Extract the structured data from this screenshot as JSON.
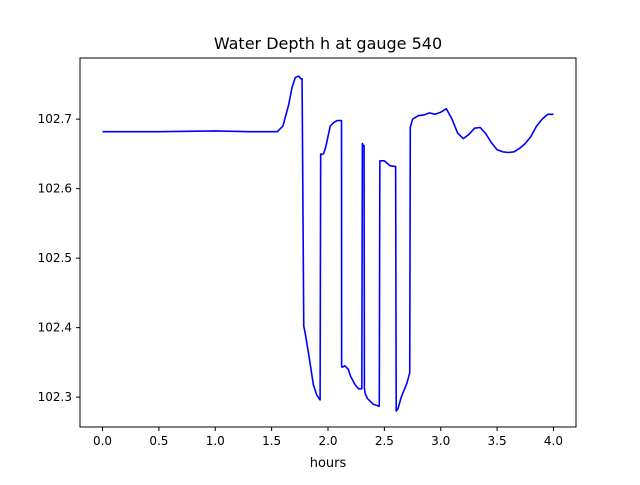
{
  "colors": {
    "line": "#0000ff",
    "axes": "#000000",
    "background": "#ffffff"
  },
  "chart_data": {
    "type": "line",
    "title": "Water Depth h at gauge 540",
    "xlabel": "hours",
    "ylabel": "",
    "xlim": [
      -0.2,
      4.2
    ],
    "ylim": [
      102.257,
      102.788
    ],
    "grid": false,
    "legend": "none",
    "xticks": [
      0.0,
      0.5,
      1.0,
      1.5,
      2.0,
      2.5,
      3.0,
      3.5,
      4.0
    ],
    "xtick_labels": [
      "0.0",
      "0.5",
      "1.0",
      "1.5",
      "2.0",
      "2.5",
      "3.0",
      "3.5",
      "4.0"
    ],
    "yticks": [
      102.3,
      102.4,
      102.5,
      102.6,
      102.7
    ],
    "ytick_labels": [
      "102.3",
      "102.4",
      "102.5",
      "102.6",
      "102.7"
    ],
    "series": [
      {
        "color": "#0000ff",
        "x": [
          0.0,
          0.5,
          1.0,
          1.3,
          1.55,
          1.6,
          1.65,
          1.68,
          1.71,
          1.74,
          1.76,
          1.77,
          1.785,
          1.8,
          1.83,
          1.87,
          1.9,
          1.93,
          1.935,
          1.94,
          1.96,
          1.98,
          2.0,
          2.02,
          2.05,
          2.08,
          2.1,
          2.12,
          2.121,
          2.125,
          2.15,
          2.18,
          2.2,
          2.24,
          2.27,
          2.3,
          2.305,
          2.308,
          2.31,
          2.32,
          2.323,
          2.325,
          2.33,
          2.35,
          2.4,
          2.45,
          2.455,
          2.46,
          2.5,
          2.55,
          2.59,
          2.6,
          2.605,
          2.62,
          2.65,
          2.7,
          2.725,
          2.73,
          2.75,
          2.8,
          2.85,
          2.9,
          2.95,
          3.0,
          3.05,
          3.1,
          3.15,
          3.2,
          3.25,
          3.3,
          3.35,
          3.4,
          3.45,
          3.5,
          3.55,
          3.6,
          3.65,
          3.7,
          3.75,
          3.8,
          3.85,
          3.9,
          3.95,
          4.0
        ],
        "values": [
          102.682,
          102.682,
          102.683,
          102.682,
          102.682,
          102.69,
          102.72,
          102.745,
          102.76,
          102.762,
          102.758,
          102.758,
          102.402,
          102.39,
          102.36,
          102.318,
          102.303,
          102.296,
          102.65,
          102.649,
          102.65,
          102.66,
          102.675,
          102.69,
          102.695,
          102.698,
          102.698,
          102.698,
          102.345,
          102.343,
          102.345,
          102.34,
          102.33,
          102.318,
          102.312,
          102.312,
          102.665,
          102.664,
          102.662,
          102.662,
          102.312,
          102.31,
          102.305,
          102.298,
          102.29,
          102.287,
          102.287,
          102.64,
          102.64,
          102.633,
          102.632,
          102.632,
          102.28,
          102.283,
          102.3,
          102.32,
          102.335,
          102.688,
          102.7,
          102.705,
          102.706,
          102.709,
          102.707,
          102.71,
          102.715,
          102.7,
          102.68,
          102.672,
          102.678,
          102.687,
          102.688,
          102.679,
          102.666,
          102.656,
          102.653,
          102.652,
          102.653,
          102.658,
          102.665,
          102.675,
          102.69,
          102.7,
          102.707,
          102.707
        ]
      }
    ]
  }
}
